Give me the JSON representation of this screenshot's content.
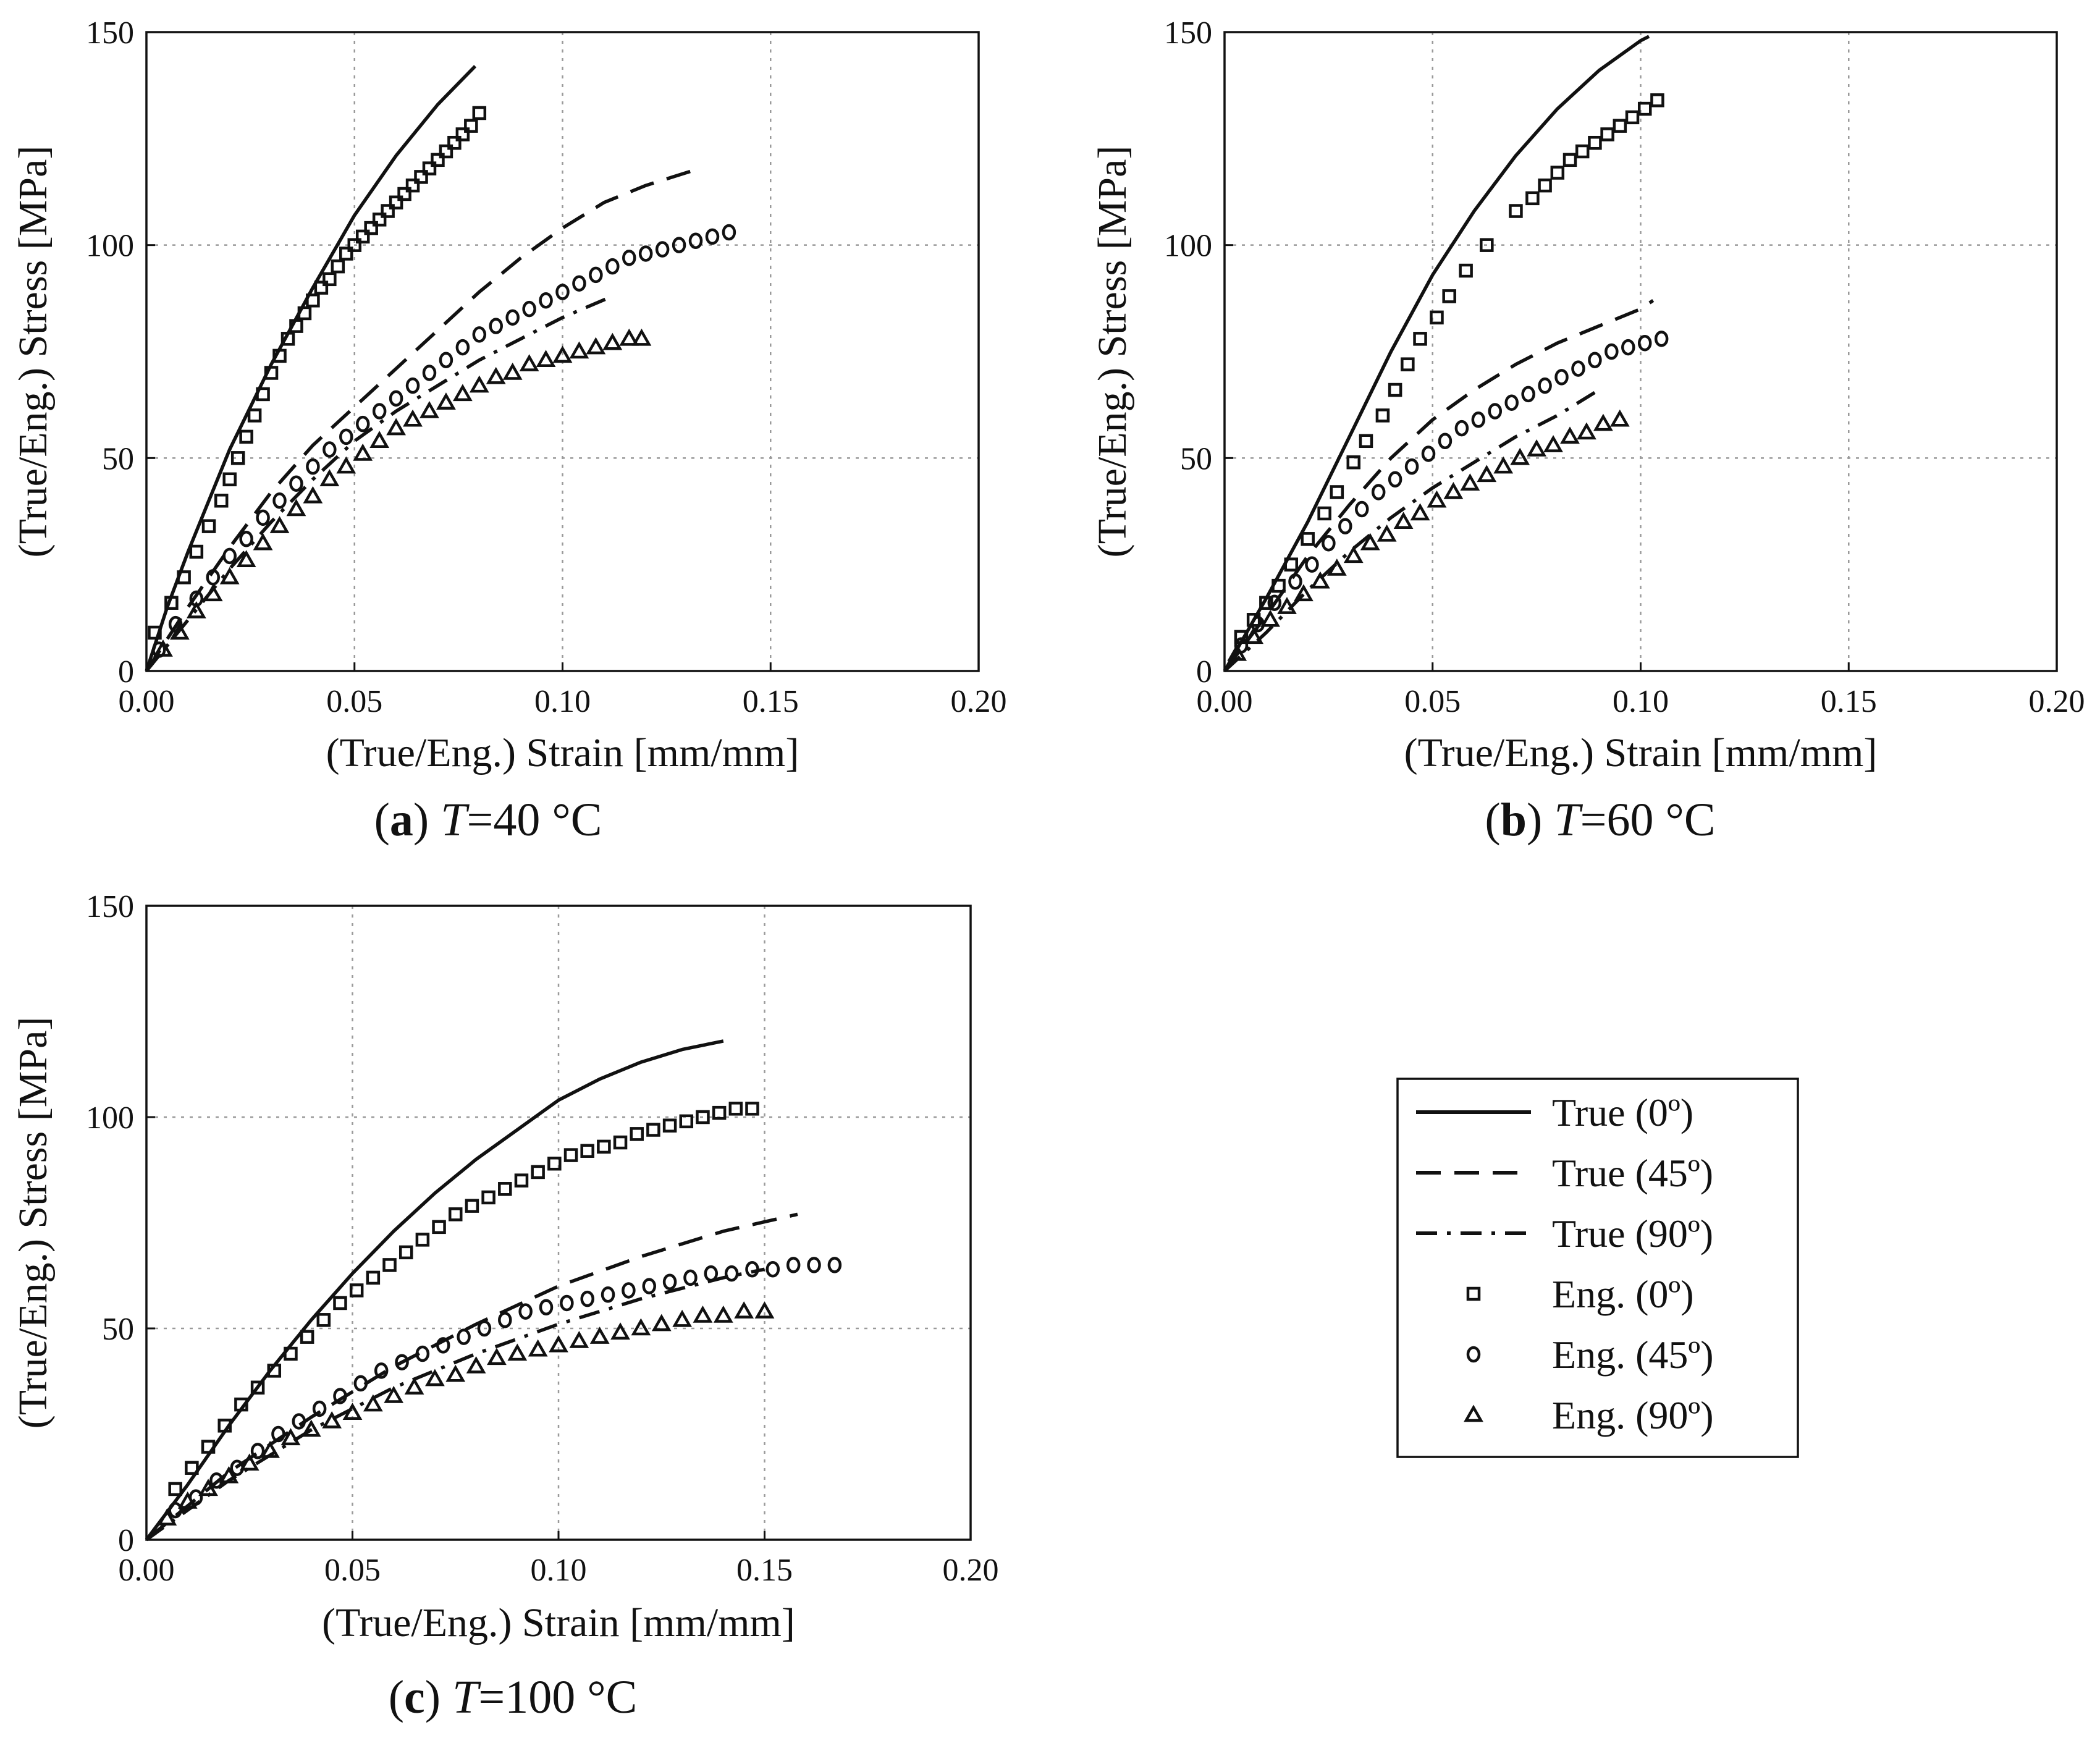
{
  "figure": {
    "legend": {
      "entries": [
        {
          "label": "True (0º)",
          "kind": "line",
          "style": "solid"
        },
        {
          "label": "True (45º)",
          "kind": "line",
          "style": "dashed"
        },
        {
          "label": "True (90º)",
          "kind": "line",
          "style": "dashdot"
        },
        {
          "label": "Eng. (0º)",
          "kind": "marker",
          "marker": "square"
        },
        {
          "label": "Eng. (45º)",
          "kind": "marker",
          "marker": "circle"
        },
        {
          "label": "Eng. (90º)",
          "kind": "marker",
          "marker": "triangle"
        }
      ]
    }
  },
  "chart_data": [
    {
      "type": "line",
      "panel_letter": "a",
      "caption_temp": "=40 °C",
      "caption_symbol": "T",
      "xlabel": "(True/Eng.) Strain [mm/mm]",
      "ylabel": "(True/Eng.) Stress [MPa]",
      "xlim": [
        0,
        0.2
      ],
      "ylim": [
        0,
        150
      ],
      "xticks": [
        "0.00",
        "0.05",
        "0.10",
        "0.15",
        "0.20"
      ],
      "yticks": [
        "0",
        "50",
        "100",
        "150"
      ],
      "grid": true,
      "series": [
        {
          "name": "True (0º)",
          "style": "solid",
          "x": [
            0,
            0.005,
            0.01,
            0.02,
            0.03,
            0.04,
            0.05,
            0.06,
            0.07,
            0.079
          ],
          "y": [
            0,
            15,
            28,
            52,
            72,
            90,
            107,
            121,
            133,
            142
          ]
        },
        {
          "name": "True (45º)",
          "style": "dashed",
          "x": [
            0,
            0.01,
            0.02,
            0.03,
            0.04,
            0.05,
            0.06,
            0.07,
            0.08,
            0.09,
            0.1,
            0.11,
            0.12,
            0.133
          ],
          "y": [
            0,
            15,
            29,
            42,
            53,
            62,
            71,
            80,
            89,
            97,
            104,
            110,
            114,
            118
          ]
        },
        {
          "name": "True (90º)",
          "style": "dashdot",
          "x": [
            0,
            0.01,
            0.02,
            0.03,
            0.04,
            0.05,
            0.06,
            0.07,
            0.08,
            0.09,
            0.1,
            0.112
          ],
          "y": [
            0,
            12,
            24,
            35,
            45,
            54,
            61,
            67,
            73,
            78,
            83,
            88
          ]
        },
        {
          "name": "Eng. (0º)",
          "marker": "square",
          "x": [
            0.002,
            0.006,
            0.009,
            0.012,
            0.015,
            0.018,
            0.02,
            0.022,
            0.024,
            0.026,
            0.028,
            0.03,
            0.032,
            0.034,
            0.036,
            0.038,
            0.04,
            0.042,
            0.044,
            0.046,
            0.048,
            0.05,
            0.052,
            0.054,
            0.056,
            0.058,
            0.06,
            0.062,
            0.064,
            0.066,
            0.068,
            0.07,
            0.072,
            0.074,
            0.076,
            0.078,
            0.08
          ],
          "y": [
            9,
            16,
            22,
            28,
            34,
            40,
            45,
            50,
            55,
            60,
            65,
            70,
            74,
            78,
            81,
            84,
            87,
            90,
            92,
            95,
            98,
            100,
            102,
            104,
            106,
            108,
            110,
            112,
            114,
            116,
            118,
            120,
            122,
            124,
            126,
            128,
            131
          ]
        },
        {
          "name": "Eng. (45º)",
          "marker": "circle",
          "x": [
            0.003,
            0.007,
            0.012,
            0.016,
            0.02,
            0.024,
            0.028,
            0.032,
            0.036,
            0.04,
            0.044,
            0.048,
            0.052,
            0.056,
            0.06,
            0.064,
            0.068,
            0.072,
            0.076,
            0.08,
            0.084,
            0.088,
            0.092,
            0.096,
            0.1,
            0.104,
            0.108,
            0.112,
            0.116,
            0.12,
            0.124,
            0.128,
            0.132,
            0.136,
            0.14
          ],
          "y": [
            5,
            11,
            17,
            22,
            27,
            31,
            36,
            40,
            44,
            48,
            52,
            55,
            58,
            61,
            64,
            67,
            70,
            73,
            76,
            79,
            81,
            83,
            85,
            87,
            89,
            91,
            93,
            95,
            97,
            98,
            99,
            100,
            101,
            102,
            103
          ]
        },
        {
          "name": "Eng. (90º)",
          "marker": "triangle",
          "x": [
            0.004,
            0.008,
            0.012,
            0.016,
            0.02,
            0.024,
            0.028,
            0.032,
            0.036,
            0.04,
            0.044,
            0.048,
            0.052,
            0.056,
            0.06,
            0.064,
            0.068,
            0.072,
            0.076,
            0.08,
            0.084,
            0.088,
            0.092,
            0.096,
            0.1,
            0.104,
            0.108,
            0.112,
            0.116,
            0.119
          ],
          "y": [
            5,
            9,
            14,
            18,
            22,
            26,
            30,
            34,
            38,
            41,
            45,
            48,
            51,
            54,
            57,
            59,
            61,
            63,
            65,
            67,
            69,
            70,
            72,
            73,
            74,
            75,
            76,
            77,
            78,
            78
          ]
        }
      ]
    },
    {
      "type": "line",
      "panel_letter": "b",
      "caption_temp": "=60 °C",
      "caption_symbol": "T",
      "xlabel": "(True/Eng.) Strain [mm/mm]",
      "ylabel": "(True/Eng.) Stress [MPa]",
      "xlim": [
        0,
        0.2
      ],
      "ylim": [
        0,
        150
      ],
      "xticks": [
        "0.00",
        "0.05",
        "0.10",
        "0.15",
        "0.20"
      ],
      "yticks": [
        "0",
        "50",
        "100",
        "150"
      ],
      "grid": true,
      "series": [
        {
          "name": "True (0º)",
          "style": "solid",
          "x": [
            0,
            0.01,
            0.02,
            0.03,
            0.04,
            0.05,
            0.06,
            0.07,
            0.08,
            0.09,
            0.1,
            0.102
          ],
          "y": [
            0,
            17,
            35,
            55,
            75,
            93,
            108,
            121,
            132,
            141,
            148,
            149
          ]
        },
        {
          "name": "True (45º)",
          "style": "dashed",
          "x": [
            0,
            0.01,
            0.02,
            0.03,
            0.04,
            0.05,
            0.06,
            0.07,
            0.08,
            0.09,
            0.1,
            0.103
          ],
          "y": [
            0,
            13,
            27,
            39,
            50,
            59,
            66,
            72,
            77,
            81,
            85,
            87
          ]
        },
        {
          "name": "True (90º)",
          "style": "dashdot",
          "x": [
            0,
            0.01,
            0.02,
            0.03,
            0.04,
            0.05,
            0.06,
            0.07,
            0.08,
            0.09
          ],
          "y": [
            0,
            9,
            19,
            28,
            36,
            43,
            49,
            55,
            60,
            66
          ]
        },
        {
          "name": "Eng. (0º)",
          "marker": "square",
          "x": [
            0.004,
            0.007,
            0.01,
            0.013,
            0.016,
            0.02,
            0.024,
            0.027,
            0.031,
            0.034,
            0.038,
            0.041,
            0.044,
            0.047,
            0.051,
            0.054,
            0.058,
            0.063,
            0.07,
            0.074,
            0.077,
            0.08,
            0.083,
            0.086,
            0.089,
            0.092,
            0.095,
            0.098,
            0.101,
            0.104
          ],
          "y": [
            8,
            12,
            16,
            20,
            25,
            31,
            37,
            42,
            49,
            54,
            60,
            66,
            72,
            78,
            83,
            88,
            94,
            100,
            108,
            111,
            114,
            117,
            120,
            122,
            124,
            126,
            128,
            130,
            132,
            134
          ]
        },
        {
          "name": "Eng. (45º)",
          "marker": "circle",
          "x": [
            0.004,
            0.008,
            0.012,
            0.017,
            0.021,
            0.025,
            0.029,
            0.033,
            0.037,
            0.041,
            0.045,
            0.049,
            0.053,
            0.057,
            0.061,
            0.065,
            0.069,
            0.073,
            0.077,
            0.081,
            0.085,
            0.089,
            0.093,
            0.097,
            0.101,
            0.105
          ],
          "y": [
            6,
            11,
            16,
            21,
            25,
            30,
            34,
            38,
            42,
            45,
            48,
            51,
            54,
            57,
            59,
            61,
            63,
            65,
            67,
            69,
            71,
            73,
            75,
            76,
            77,
            78
          ]
        },
        {
          "name": "Eng. (90º)",
          "marker": "triangle",
          "x": [
            0.003,
            0.007,
            0.011,
            0.015,
            0.019,
            0.023,
            0.027,
            0.031,
            0.035,
            0.039,
            0.043,
            0.047,
            0.051,
            0.055,
            0.059,
            0.063,
            0.067,
            0.071,
            0.075,
            0.079,
            0.083,
            0.087,
            0.091,
            0.095
          ],
          "y": [
            4,
            8,
            12,
            15,
            18,
            21,
            24,
            27,
            30,
            32,
            35,
            37,
            40,
            42,
            44,
            46,
            48,
            50,
            52,
            53,
            55,
            56,
            58,
            59
          ]
        }
      ]
    },
    {
      "type": "line",
      "panel_letter": "c",
      "caption_temp": "=100 °C",
      "caption_symbol": "T",
      "xlabel": "(True/Eng.) Strain [mm/mm]",
      "ylabel": "(True/Eng.) Stress [MPa]",
      "xlim": [
        0,
        0.2
      ],
      "ylim": [
        0,
        150
      ],
      "xticks": [
        "0.00",
        "0.05",
        "0.10",
        "0.15",
        "0.20"
      ],
      "yticks": [
        "0",
        "50",
        "100",
        "150"
      ],
      "grid": true,
      "series": [
        {
          "name": "True (0º)",
          "style": "solid",
          "x": [
            0,
            0.01,
            0.02,
            0.03,
            0.04,
            0.05,
            0.06,
            0.07,
            0.08,
            0.09,
            0.1,
            0.11,
            0.12,
            0.13,
            0.14
          ],
          "y": [
            0,
            13,
            27,
            40,
            52,
            63,
            73,
            82,
            90,
            97,
            104,
            109,
            113,
            116,
            118
          ]
        },
        {
          "name": "True (45º)",
          "style": "dashed",
          "x": [
            0,
            0.02,
            0.04,
            0.06,
            0.08,
            0.1,
            0.12,
            0.14,
            0.158
          ],
          "y": [
            0,
            16,
            29,
            41,
            51,
            60,
            67,
            73,
            77
          ]
        },
        {
          "name": "True (90º)",
          "style": "dashdot",
          "x": [
            0,
            0.02,
            0.04,
            0.06,
            0.08,
            0.1,
            0.12,
            0.14,
            0.15
          ],
          "y": [
            0,
            14,
            26,
            36,
            44,
            51,
            57,
            62,
            64
          ]
        },
        {
          "name": "Eng. (0º)",
          "marker": "square",
          "x": [
            0.007,
            0.011,
            0.015,
            0.019,
            0.023,
            0.027,
            0.031,
            0.035,
            0.039,
            0.043,
            0.047,
            0.051,
            0.055,
            0.059,
            0.063,
            0.067,
            0.071,
            0.075,
            0.079,
            0.083,
            0.087,
            0.091,
            0.095,
            0.099,
            0.103,
            0.107,
            0.111,
            0.115,
            0.119,
            0.123,
            0.127,
            0.131,
            0.135,
            0.139,
            0.143,
            0.147
          ],
          "y": [
            12,
            17,
            22,
            27,
            32,
            36,
            40,
            44,
            48,
            52,
            56,
            59,
            62,
            65,
            68,
            71,
            74,
            77,
            79,
            81,
            83,
            85,
            87,
            89,
            91,
            92,
            93,
            94,
            96,
            97,
            98,
            99,
            100,
            101,
            102,
            102
          ]
        },
        {
          "name": "Eng. (45º)",
          "marker": "circle",
          "x": [
            0.007,
            0.012,
            0.017,
            0.022,
            0.027,
            0.032,
            0.037,
            0.042,
            0.047,
            0.052,
            0.057,
            0.062,
            0.067,
            0.072,
            0.077,
            0.082,
            0.087,
            0.092,
            0.097,
            0.102,
            0.107,
            0.112,
            0.117,
            0.122,
            0.127,
            0.132,
            0.137,
            0.142,
            0.147,
            0.152,
            0.157,
            0.162,
            0.167
          ],
          "y": [
            7,
            10,
            14,
            17,
            21,
            25,
            28,
            31,
            34,
            37,
            40,
            42,
            44,
            46,
            48,
            50,
            52,
            54,
            55,
            56,
            57,
            58,
            59,
            60,
            61,
            62,
            63,
            63,
            64,
            64,
            65,
            65,
            65
          ]
        },
        {
          "name": "Eng. (90º)",
          "marker": "triangle",
          "x": [
            0.005,
            0.01,
            0.015,
            0.02,
            0.025,
            0.03,
            0.035,
            0.04,
            0.045,
            0.05,
            0.055,
            0.06,
            0.065,
            0.07,
            0.075,
            0.08,
            0.085,
            0.09,
            0.095,
            0.1,
            0.105,
            0.11,
            0.115,
            0.12,
            0.125,
            0.13,
            0.135,
            0.14,
            0.145,
            0.15
          ],
          "y": [
            5,
            9,
            12,
            15,
            18,
            21,
            24,
            26,
            28,
            30,
            32,
            34,
            36,
            38,
            39,
            41,
            43,
            44,
            45,
            46,
            47,
            48,
            49,
            50,
            51,
            52,
            53,
            53,
            54,
            54
          ]
        }
      ]
    }
  ]
}
